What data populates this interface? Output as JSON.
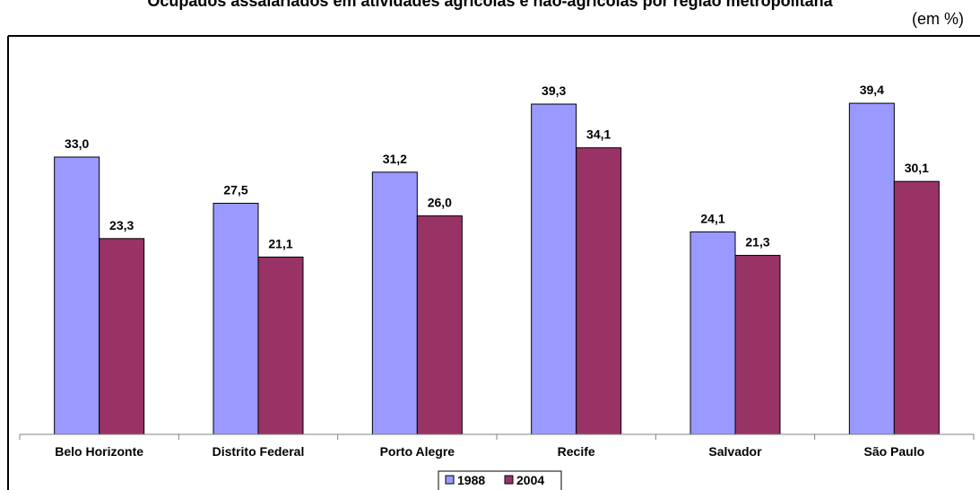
{
  "chart_data": {
    "type": "bar",
    "title": "Ocupados assalariados em atividades agrícolas e não-agrícolas por região metropolitana",
    "unit_label": "(em %)",
    "categories": [
      "Belo Horizonte",
      "Distrito Federal",
      "Porto Alegre",
      "Recife",
      "Salvador",
      "São Paulo"
    ],
    "series": [
      {
        "name": "1988",
        "values": [
          33.0,
          27.5,
          31.2,
          39.3,
          24.1,
          39.4
        ],
        "color": "#9999ff"
      },
      {
        "name": "2004",
        "values": [
          23.3,
          21.1,
          26.0,
          34.1,
          21.3,
          30.1
        ],
        "color": "#993366"
      }
    ],
    "data_labels": [
      [
        "33,0",
        "27,5",
        "31,2",
        "39,3",
        "24,1",
        "39,4"
      ],
      [
        "23,3",
        "21,1",
        "26,0",
        "34,1",
        "21,3",
        "30,1"
      ]
    ],
    "ylim": [
      0,
      44
    ],
    "grid": false,
    "legend_position": "bottom-center"
  }
}
